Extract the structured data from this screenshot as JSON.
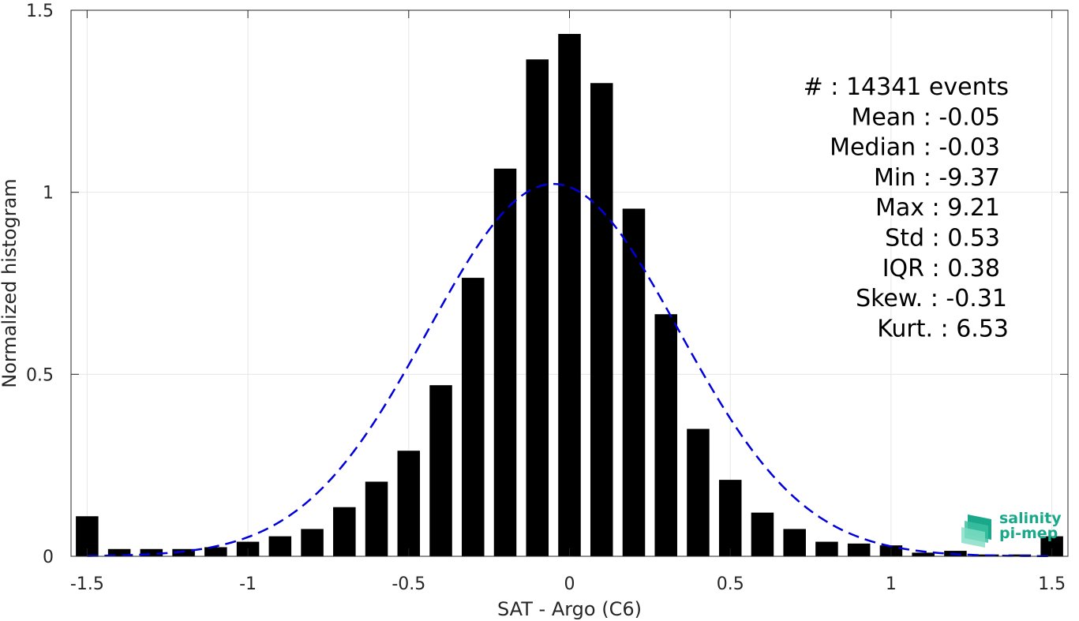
{
  "chart_data": {
    "type": "bar",
    "xlabel": "SAT - Argo (C6)",
    "ylabel": "Normalized histogram",
    "xlim": [
      -1.55,
      1.55
    ],
    "ylim": [
      0,
      1.5
    ],
    "xticks": [
      -1.5,
      -1,
      -0.5,
      0,
      0.5,
      1,
      1.5
    ],
    "xtick_labels": [
      "-1.5",
      "-1",
      "-0.5",
      "0",
      "0.5",
      "1",
      "1.5"
    ],
    "yticks": [
      0,
      0.5,
      1,
      1.5
    ],
    "ytick_labels": [
      "0",
      "0.5",
      "1",
      "1.5"
    ],
    "grid": true,
    "bin_width": 0.1,
    "bar_color": "#000000",
    "categories": [
      -1.5,
      -1.4,
      -1.3,
      -1.2,
      -1.1,
      -1.0,
      -0.9,
      -0.8,
      -0.7,
      -0.6,
      -0.5,
      -0.4,
      -0.3,
      -0.2,
      -0.1,
      0.0,
      0.1,
      0.2,
      0.3,
      0.4,
      0.5,
      0.6,
      0.7,
      0.8,
      0.9,
      1.0,
      1.1,
      1.2,
      1.3,
      1.4,
      1.5
    ],
    "values": [
      0.11,
      0.02,
      0.02,
      0.02,
      0.025,
      0.04,
      0.055,
      0.075,
      0.135,
      0.205,
      0.29,
      0.47,
      0.765,
      1.065,
      1.365,
      1.435,
      1.3,
      0.955,
      0.665,
      0.35,
      0.21,
      0.12,
      0.075,
      0.04,
      0.035,
      0.03,
      0.01,
      0.015,
      0.005,
      0.005,
      0.055
    ],
    "fit": {
      "type": "normal",
      "style": "dashed",
      "color": "#0000dd",
      "mean": -0.05,
      "std": 0.39,
      "x_range": [
        -1.5,
        1.5
      ]
    },
    "annotation": [
      "#  : 14341 events",
      "Mean : -0.05",
      "Median : -0.03",
      "Min : -9.37",
      "Max : 9.21",
      "Std : 0.53",
      "IQR : 0.38",
      "Skew. : -0.31",
      "Kurt. : 6.53"
    ]
  },
  "logo": {
    "line1": "salinity",
    "line2": "pi-mep",
    "color": "#1aa88a"
  }
}
